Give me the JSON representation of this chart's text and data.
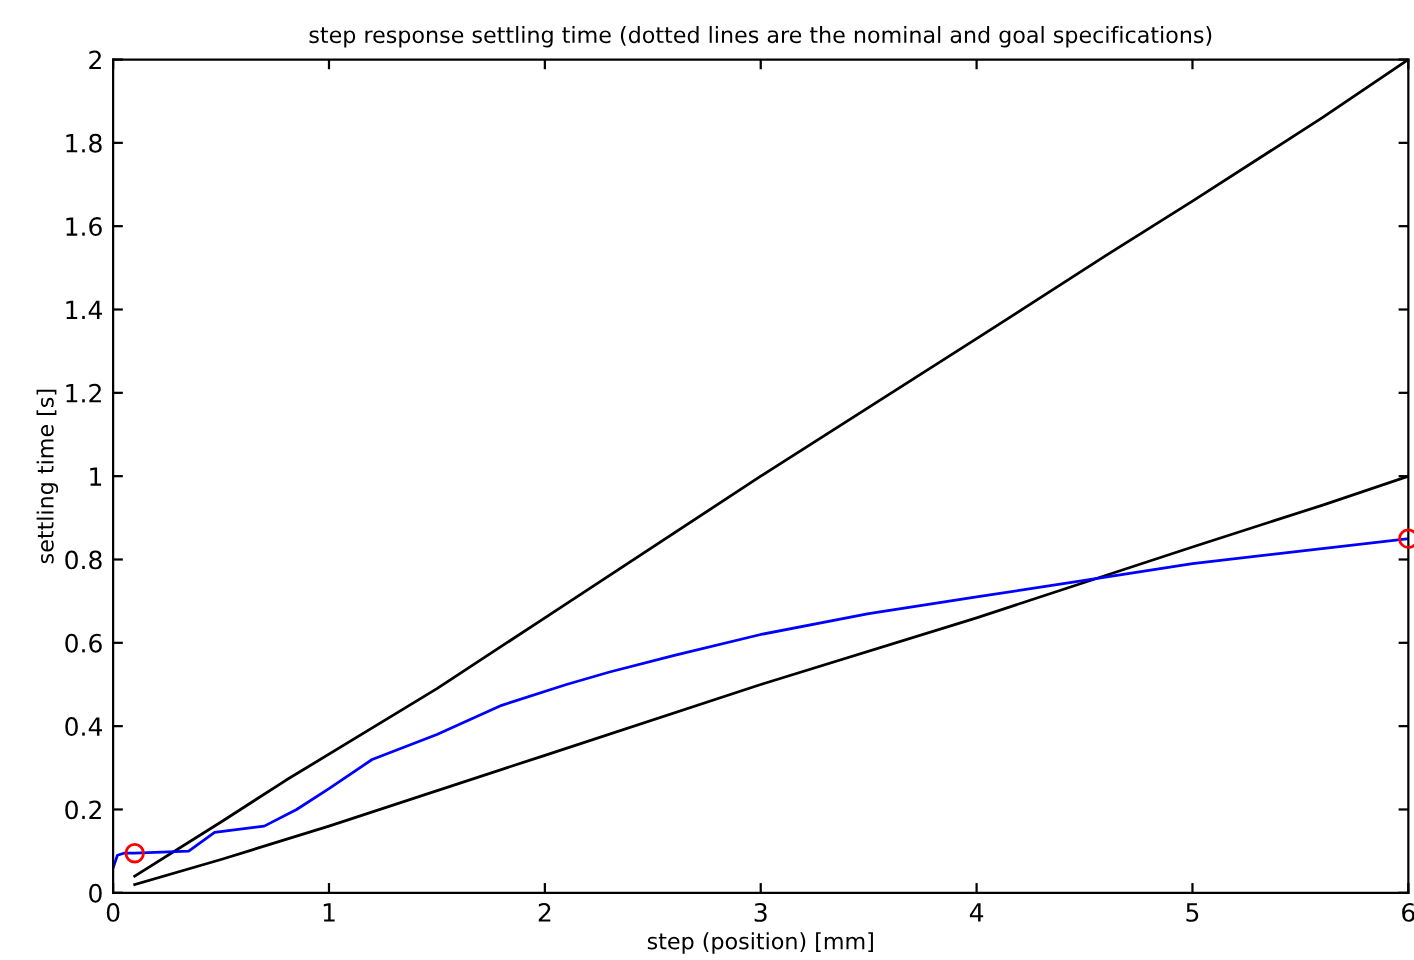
{
  "chart_data": {
    "type": "line",
    "title": "step response settling time (dotted lines are the nominal and goal specifications)",
    "xlabel": "step (position) [mm]",
    "ylabel": "settling time [s]",
    "xlim": [
      0,
      6
    ],
    "ylim": [
      0,
      2
    ],
    "xticks": [
      0,
      1,
      2,
      3,
      4,
      5,
      6
    ],
    "yticks": [
      0,
      0.2,
      0.4,
      0.6,
      0.8,
      1,
      1.2,
      1.4,
      1.6,
      1.8,
      2
    ],
    "grid": false,
    "legend": false,
    "series": [
      {
        "color": "#000000",
        "x": [
          0.1,
          0.5,
          0.8,
          1.5,
          2,
          3,
          4,
          4.6,
          5,
          5.6,
          6
        ],
        "values": [
          0.04,
          0.17,
          0.27,
          0.49,
          0.66,
          1.0,
          1.33,
          1.53,
          1.66,
          1.86,
          2.0
        ]
      },
      {
        "color": "#000000",
        "x": [
          0.1,
          0.5,
          1,
          2,
          3,
          4,
          5,
          5.6,
          6
        ],
        "values": [
          0.02,
          0.08,
          0.16,
          0.33,
          0.5,
          0.66,
          0.83,
          0.93,
          1.0
        ]
      },
      {
        "color": "#0000ff",
        "x": [
          0,
          0.02,
          0.05,
          0.1,
          0.35,
          0.47,
          0.7,
          0.85,
          1.0,
          1.2,
          1.5,
          1.8,
          2.1,
          2.3,
          2.6,
          3,
          3.5,
          4,
          4.5,
          5,
          5.5,
          6
        ],
        "values": [
          0.06,
          0.09,
          0.095,
          0.095,
          0.1,
          0.145,
          0.16,
          0.2,
          0.25,
          0.32,
          0.38,
          0.45,
          0.5,
          0.53,
          0.57,
          0.62,
          0.67,
          0.71,
          0.75,
          0.79,
          0.82,
          0.85
        ]
      },
      {
        "type": "scatter",
        "color": "#ff0000",
        "marker": "circle",
        "x": [
          0.1,
          6
        ],
        "values": [
          0.095,
          0.85
        ]
      }
    ]
  }
}
